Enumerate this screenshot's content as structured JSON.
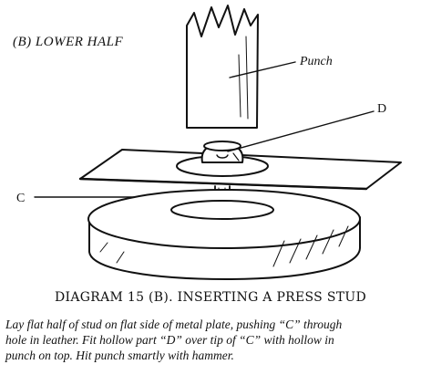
{
  "section_label": "(B) LOWER HALF",
  "labels": {
    "punch": "Punch",
    "d": "D",
    "c": "C"
  },
  "caption": {
    "title": "DIAGRAM 15 (B).  INSERTING A PRESS STUD",
    "lines": [
      "Lay flat half of stud on flat side of metal plate, pushing “C” through",
      "hole in leather.  Fit hollow part “D” over tip of “C” with hollow in",
      "punch on top.  Hit punch smartly with hammer."
    ]
  }
}
